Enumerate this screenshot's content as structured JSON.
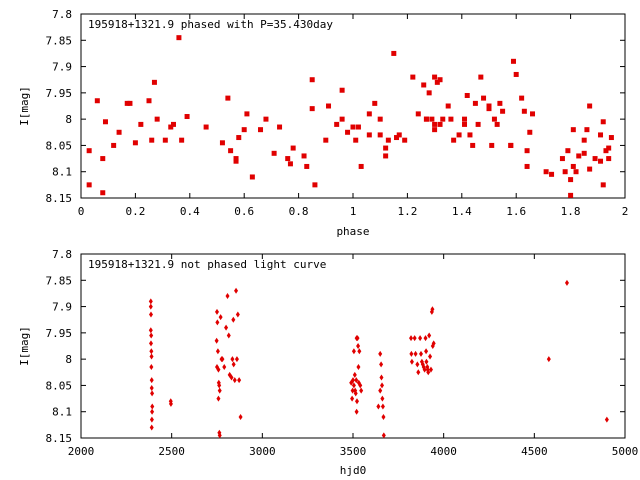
{
  "chart_data": [
    {
      "type": "scatter",
      "title": "195918+1321.9 phased with P=35.430day",
      "xlabel": "phase",
      "ylabel": "I[mag]",
      "xlim": [
        0,
        2
      ],
      "ylim": [
        7.8,
        8.15
      ],
      "y_inverted": true,
      "grid": false,
      "xticks": [
        "0",
        "0.2",
        "0.4",
        "0.6",
        "0.8",
        "1",
        "1.2",
        "1.4",
        "1.6",
        "1.8",
        "2"
      ],
      "xtick_values": [
        0,
        0.2,
        0.4,
        0.6,
        0.8,
        1.0,
        1.2,
        1.4,
        1.6,
        1.8,
        2.0
      ],
      "yticks": [
        "7.8",
        "7.85",
        "7.9",
        "7.95",
        "8",
        "8.05",
        "8.1",
        "8.15"
      ],
      "ytick_values": [
        7.8,
        7.85,
        7.9,
        7.95,
        8.0,
        8.05,
        8.1,
        8.15
      ],
      "marker_color": "#e00000",
      "points": [
        [
          0.03,
          8.06
        ],
        [
          0.03,
          8.125
        ],
        [
          0.06,
          7.965
        ],
        [
          0.08,
          8.075
        ],
        [
          0.09,
          8.005
        ],
        [
          0.08,
          8.14
        ],
        [
          0.12,
          8.05
        ],
        [
          0.14,
          8.025
        ],
        [
          0.17,
          7.97
        ],
        [
          0.18,
          7.97
        ],
        [
          0.2,
          8.045
        ],
        [
          0.22,
          8.01
        ],
        [
          0.25,
          7.965
        ],
        [
          0.27,
          7.93
        ],
        [
          0.28,
          8.0
        ],
        [
          0.26,
          8.04
        ],
        [
          0.31,
          8.04
        ],
        [
          0.33,
          8.015
        ],
        [
          0.34,
          8.01
        ],
        [
          0.36,
          7.845
        ],
        [
          0.37,
          8.04
        ],
        [
          0.39,
          7.995
        ],
        [
          0.46,
          8.015
        ],
        [
          0.52,
          8.045
        ],
        [
          0.54,
          7.96
        ],
        [
          0.55,
          8.06
        ],
        [
          0.57,
          8.075
        ],
        [
          0.57,
          8.08
        ],
        [
          0.58,
          8.035
        ],
        [
          0.6,
          8.02
        ],
        [
          0.61,
          7.99
        ],
        [
          0.63,
          8.11
        ],
        [
          0.66,
          8.02
        ],
        [
          0.68,
          8.0
        ],
        [
          0.71,
          8.065
        ],
        [
          0.73,
          8.015
        ],
        [
          0.76,
          8.075
        ],
        [
          0.77,
          8.085
        ],
        [
          0.78,
          8.055
        ],
        [
          0.82,
          8.07
        ],
        [
          0.83,
          8.09
        ],
        [
          0.85,
          7.925
        ],
        [
          0.85,
          7.98
        ],
        [
          0.86,
          8.125
        ],
        [
          0.9,
          8.04
        ],
        [
          0.91,
          7.975
        ],
        [
          0.94,
          8.01
        ],
        [
          0.96,
          8.0
        ],
        [
          0.96,
          7.945
        ],
        [
          0.98,
          8.025
        ],
        [
          1.0,
          8.015
        ],
        [
          1.01,
          8.04
        ],
        [
          1.02,
          8.015
        ],
        [
          1.03,
          8.09
        ],
        [
          1.06,
          8.03
        ],
        [
          1.06,
          7.99
        ],
        [
          1.08,
          7.97
        ],
        [
          1.1,
          8.03
        ],
        [
          1.1,
          8.0
        ],
        [
          1.12,
          8.055
        ],
        [
          1.12,
          8.07
        ],
        [
          1.13,
          8.04
        ],
        [
          1.15,
          7.875
        ],
        [
          1.16,
          8.035
        ],
        [
          1.17,
          8.03
        ],
        [
          1.19,
          8.04
        ],
        [
          1.22,
          7.92
        ],
        [
          1.24,
          7.99
        ],
        [
          1.26,
          7.935
        ],
        [
          1.27,
          8.0
        ],
        [
          1.27,
          8.0
        ],
        [
          1.28,
          7.95
        ],
        [
          1.29,
          8.0
        ],
        [
          1.3,
          8.01
        ],
        [
          1.3,
          8.02
        ],
        [
          1.3,
          7.92
        ],
        [
          1.31,
          7.93
        ],
        [
          1.32,
          7.925
        ],
        [
          1.32,
          8.01
        ],
        [
          1.33,
          8.0
        ],
        [
          1.35,
          7.975
        ],
        [
          1.36,
          8.0
        ],
        [
          1.37,
          8.04
        ],
        [
          1.39,
          8.03
        ],
        [
          1.41,
          8.0
        ],
        [
          1.41,
          8.01
        ],
        [
          1.42,
          7.955
        ],
        [
          1.43,
          8.03
        ],
        [
          1.44,
          8.05
        ],
        [
          1.45,
          7.97
        ],
        [
          1.46,
          8.01
        ],
        [
          1.47,
          7.92
        ],
        [
          1.48,
          7.96
        ],
        [
          1.5,
          7.975
        ],
        [
          1.5,
          7.98
        ],
        [
          1.51,
          8.05
        ],
        [
          1.52,
          8.0
        ],
        [
          1.53,
          8.01
        ],
        [
          1.54,
          7.97
        ],
        [
          1.55,
          7.985
        ],
        [
          1.58,
          8.05
        ],
        [
          1.58,
          8.05
        ],
        [
          1.59,
          7.89
        ],
        [
          1.6,
          7.915
        ],
        [
          1.62,
          7.96
        ],
        [
          1.63,
          7.985
        ],
        [
          1.64,
          8.06
        ],
        [
          1.64,
          8.09
        ],
        [
          1.65,
          8.025
        ],
        [
          1.66,
          7.99
        ],
        [
          1.71,
          8.1
        ],
        [
          1.73,
          8.105
        ],
        [
          1.77,
          8.075
        ],
        [
          1.78,
          8.1
        ],
        [
          1.79,
          8.06
        ],
        [
          1.8,
          8.115
        ],
        [
          1.81,
          8.02
        ],
        [
          1.81,
          8.09
        ],
        [
          1.83,
          8.07
        ],
        [
          1.85,
          8.065
        ],
        [
          1.85,
          8.04
        ],
        [
          1.86,
          8.02
        ],
        [
          1.87,
          7.975
        ],
        [
          1.87,
          8.095
        ],
        [
          1.89,
          8.075
        ],
        [
          1.91,
          8.08
        ],
        [
          1.91,
          8.03
        ],
        [
          1.92,
          8.005
        ],
        [
          1.93,
          8.06
        ],
        [
          1.94,
          8.075
        ],
        [
          1.95,
          8.035
        ],
        [
          1.94,
          8.055
        ],
        [
          1.92,
          8.125
        ],
        [
          1.8,
          8.145
        ],
        [
          1.82,
          8.1
        ]
      ]
    },
    {
      "type": "scatter",
      "title": "195918+1321.9 not phased light curve",
      "xlabel": "hjd0",
      "ylabel": "I[mag]",
      "xlim": [
        2000,
        5000
      ],
      "ylim": [
        7.8,
        8.15
      ],
      "y_inverted": true,
      "grid": false,
      "xticks": [
        "2000",
        "2500",
        "3000",
        "3500",
        "4000",
        "4500",
        "5000"
      ],
      "xtick_values": [
        2000,
        2500,
        3000,
        3500,
        4000,
        4500,
        5000
      ],
      "yticks": [
        "7.8",
        "7.85",
        "7.9",
        "7.95",
        "8",
        "8.05",
        "8.1",
        "8.15"
      ],
      "ytick_values": [
        7.8,
        7.85,
        7.9,
        7.95,
        8.0,
        8.05,
        8.1,
        8.15
      ],
      "marker_color": "#e00000",
      "points": [
        [
          2385,
          7.89
        ],
        [
          2385,
          7.9
        ],
        [
          2386,
          7.915
        ],
        [
          2385,
          7.945
        ],
        [
          2387,
          7.955
        ],
        [
          2386,
          7.97
        ],
        [
          2388,
          7.985
        ],
        [
          2389,
          7.995
        ],
        [
          2388,
          8.015
        ],
        [
          2390,
          8.04
        ],
        [
          2390,
          8.055
        ],
        [
          2392,
          8.065
        ],
        [
          2393,
          8.09
        ],
        [
          2392,
          8.1
        ],
        [
          2391,
          8.115
        ],
        [
          2390,
          8.13
        ],
        [
          2495,
          8.08
        ],
        [
          2496,
          8.085
        ],
        [
          2750,
          7.91
        ],
        [
          2752,
          7.93
        ],
        [
          2748,
          7.965
        ],
        [
          2755,
          7.985
        ],
        [
          2750,
          8.015
        ],
        [
          2758,
          8.02
        ],
        [
          2760,
          8.045
        ],
        [
          2762,
          8.05
        ],
        [
          2765,
          8.06
        ],
        [
          2758,
          8.075
        ],
        [
          2763,
          8.14
        ],
        [
          2765,
          8.145
        ],
        [
          2770,
          7.92
        ],
        [
          2780,
          8.0
        ],
        [
          2790,
          8.015
        ],
        [
          2800,
          7.94
        ],
        [
          2808,
          7.88
        ],
        [
          2815,
          7.955
        ],
        [
          2820,
          8.03
        ],
        [
          2830,
          8.035
        ],
        [
          2840,
          7.925
        ],
        [
          2842,
          8.01
        ],
        [
          2848,
          8.04
        ],
        [
          2855,
          7.87
        ],
        [
          2860,
          8.0
        ],
        [
          2865,
          7.915
        ],
        [
          2880,
          8.11
        ],
        [
          2872,
          8.04
        ],
        [
          2835,
          8.0
        ],
        [
          2775,
          8.0
        ],
        [
          3490,
          8.045
        ],
        [
          3495,
          8.075
        ],
        [
          3498,
          8.06
        ],
        [
          3500,
          8.04
        ],
        [
          3505,
          8.05
        ],
        [
          3505,
          7.985
        ],
        [
          3510,
          8.03
        ],
        [
          3512,
          8.06
        ],
        [
          3515,
          8.065
        ],
        [
          3518,
          8.04
        ],
        [
          3520,
          8.1
        ],
        [
          3522,
          8.08
        ],
        [
          3525,
          7.96
        ],
        [
          3528,
          7.975
        ],
        [
          3530,
          8.015
        ],
        [
          3532,
          8.045
        ],
        [
          3535,
          7.985
        ],
        [
          3540,
          8.05
        ],
        [
          3545,
          8.06
        ],
        [
          3520,
          7.96
        ],
        [
          3650,
          7.99
        ],
        [
          3655,
          8.01
        ],
        [
          3657,
          8.035
        ],
        [
          3660,
          8.05
        ],
        [
          3662,
          8.075
        ],
        [
          3665,
          8.09
        ],
        [
          3668,
          8.11
        ],
        [
          3670,
          8.145
        ],
        [
          3640,
          8.09
        ],
        [
          3650,
          8.06
        ],
        [
          3820,
          7.96
        ],
        [
          3822,
          7.99
        ],
        [
          3825,
          8.005
        ],
        [
          3840,
          7.96
        ],
        [
          3845,
          7.99
        ],
        [
          3855,
          8.01
        ],
        [
          3860,
          8.025
        ],
        [
          3870,
          7.96
        ],
        [
          3875,
          7.99
        ],
        [
          3880,
          8.005
        ],
        [
          3885,
          8.01
        ],
        [
          3890,
          8.015
        ],
        [
          3895,
          8.02
        ],
        [
          3900,
          7.96
        ],
        [
          3903,
          7.985
        ],
        [
          3905,
          8.005
        ],
        [
          3910,
          8.015
        ],
        [
          3912,
          8.02
        ],
        [
          3915,
          8.025
        ],
        [
          3920,
          7.955
        ],
        [
          3925,
          7.995
        ],
        [
          3930,
          8.02
        ],
        [
          3935,
          7.91
        ],
        [
          3938,
          7.905
        ],
        [
          3940,
          7.975
        ],
        [
          3945,
          7.97
        ],
        [
          4580,
          8.0
        ],
        [
          4680,
          7.855
        ],
        [
          4900,
          8.115
        ]
      ]
    }
  ]
}
